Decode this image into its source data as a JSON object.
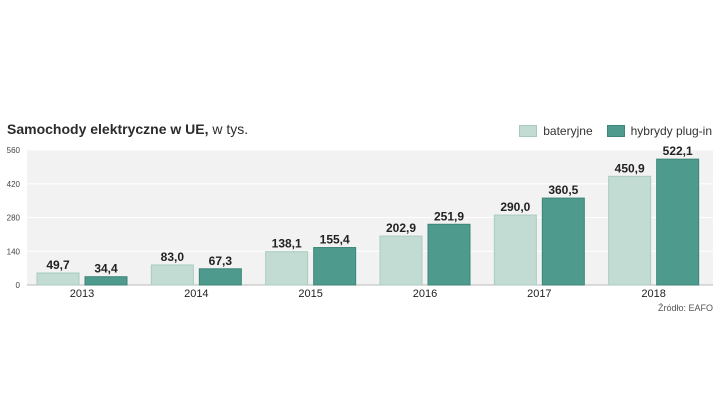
{
  "chart_data": {
    "type": "bar",
    "title_bold": "Samochody elektryczne w UE,",
    "title_rest": " w tys.",
    "categories": [
      "2013",
      "2014",
      "2015",
      "2016",
      "2017",
      "2018"
    ],
    "series": [
      {
        "name": "bateryjne",
        "values": [
          49.7,
          83.0,
          138.1,
          202.9,
          290.0,
          450.9
        ],
        "labels": [
          "49,7",
          "83,0",
          "138,1",
          "202,9",
          "290,0",
          "450,9"
        ],
        "color": "#c3dcd3"
      },
      {
        "name": "hybrydy plug-in",
        "values": [
          34.4,
          67.3,
          155.4,
          251.9,
          360.5,
          522.1
        ],
        "labels": [
          "34,4",
          "67,3",
          "155,4",
          "251,9",
          "360,5",
          "522,1"
        ],
        "color": "#4e9b8d"
      }
    ],
    "yticks": [
      0,
      140,
      280,
      420,
      560
    ],
    "ylim": [
      0,
      560
    ],
    "source": "Źródło: EAFO"
  }
}
